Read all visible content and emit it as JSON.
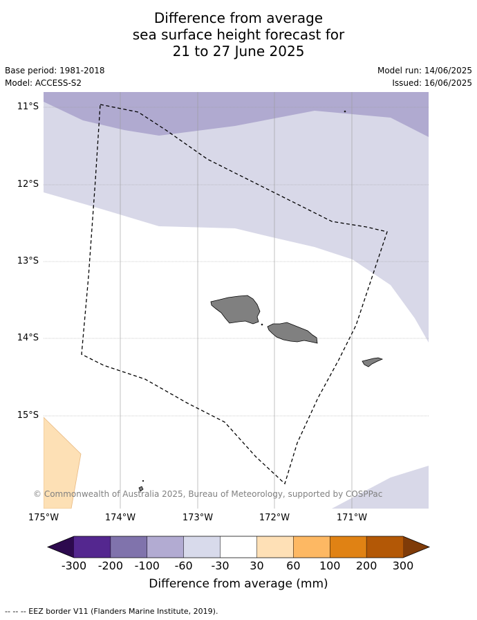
{
  "title": {
    "line1": "Difference from average",
    "line2": "sea surface height forecast for",
    "line3": "21 to 27 June 2025"
  },
  "meta": {
    "base_period": "Base period: 1981-2018",
    "model": "Model: ACCESS-S2",
    "model_run": "Model run: 14/06/2025",
    "issued": "Issued: 16/06/2025"
  },
  "map": {
    "lat_labels": [
      "11°S",
      "12°S",
      "13°S",
      "14°S",
      "15°S"
    ],
    "lon_labels": [
      "175°W",
      "174°W",
      "173°W",
      "172°W",
      "171°W"
    ],
    "credit": "© Commonwealth of Australia 2025, Bureau of Meteorology, supported by COSPPac",
    "colors": {
      "ocean_neutral": "#ffffff",
      "light_purple": "#d8d8e8",
      "mid_purple": "#b0aad0",
      "light_orange": "#fde0b5",
      "land": "#808080",
      "eez_line": "#000000",
      "grid": "#999999"
    }
  },
  "colorbar": {
    "labels": [
      "-300",
      "-200",
      "-100",
      "-60",
      "-30",
      "30",
      "60",
      "100",
      "200",
      "300"
    ],
    "colors": [
      "#2d0a4e",
      "#54278f",
      "#8073ac",
      "#b2abd2",
      "#d8daeb",
      "#ffffff",
      "#fee0b6",
      "#fdb863",
      "#e08214",
      "#b35806",
      "#7f3b08"
    ],
    "title": "Difference from average (mm)"
  },
  "footer": "--  --  -- EEZ border V11 (Flanders Marine Institute, 2019)."
}
